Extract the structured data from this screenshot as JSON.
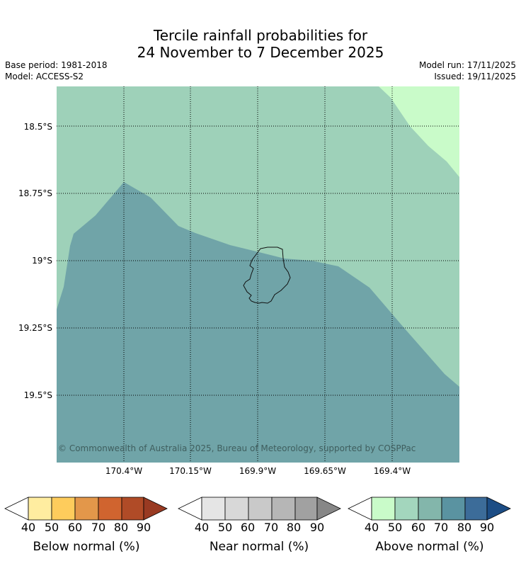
{
  "title": {
    "line1": "Tercile rainfall probabilities for",
    "line2": "24 November to 7 December 2025"
  },
  "meta": {
    "base_period": "Base period: 1981-2018",
    "model": "Model: ACCESS-S2",
    "model_run": "Model run: 17/11/2025",
    "issued": "Issued: 19/11/2025"
  },
  "map": {
    "lat_labels": [
      "18.5°S",
      "18.75°S",
      "19°S",
      "19.25°S",
      "19.5°S"
    ],
    "lon_labels": [
      "170.4°W",
      "170.15°W",
      "169.9°W",
      "169.65°W",
      "169.4°W"
    ],
    "copyright": "© Commonwealth of Australia 2025, Bureau of Meteorology, supported by COSPPac",
    "category_colors": {
      "above_50": "#c9fbc9",
      "above_60": "#9ed1b9",
      "above_70": "#70a4a8"
    }
  },
  "colorbars": [
    {
      "label": "Below normal (%)",
      "ticks": [
        "40",
        "50",
        "60",
        "70",
        "80",
        "90"
      ],
      "colors": [
        "#ffffff",
        "#ffeda0",
        "#fecc5c",
        "#e3974a",
        "#d0642f",
        "#b04b27",
        "#993a22"
      ]
    },
    {
      "label": "Near normal (%)",
      "ticks": [
        "40",
        "50",
        "60",
        "70",
        "80",
        "90"
      ],
      "colors": [
        "#ffffff",
        "#e5e5e5",
        "#d8d8d8",
        "#c9c9c9",
        "#b6b6b6",
        "#a1a1a1",
        "#878787"
      ]
    },
    {
      "label": "Above normal (%)",
      "ticks": [
        "40",
        "50",
        "60",
        "70",
        "80",
        "90"
      ],
      "colors": [
        "#ffffff",
        "#c9fbc9",
        "#a3d6bd",
        "#83b6ab",
        "#5a93a1",
        "#3c6c99",
        "#1c4d85"
      ]
    }
  ]
}
